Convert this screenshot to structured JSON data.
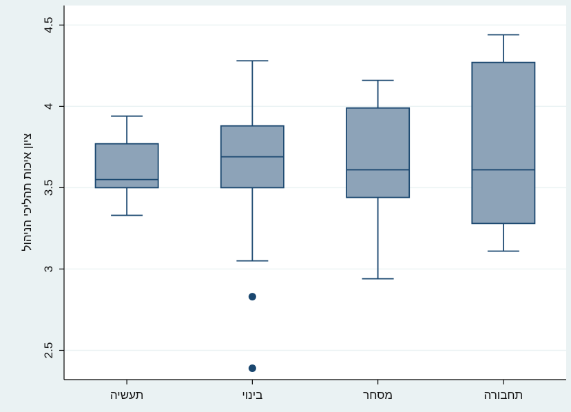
{
  "chart_data": {
    "type": "boxplot",
    "title": "",
    "xlabel": "",
    "ylabel": "ציון איכות תהליכי הניהול",
    "ylim": [
      2.32,
      4.62
    ],
    "yticks": [
      2.5,
      3,
      3.5,
      4,
      4.5
    ],
    "ytick_labels": [
      "2.5",
      "3",
      "3.5",
      "4",
      "4.5"
    ],
    "grid": true,
    "categories": [
      "תעשיה",
      "בינוי",
      "מסחר",
      "תחבורה"
    ],
    "boxes": [
      {
        "whisker_low": 3.33,
        "q1": 3.5,
        "median": 3.55,
        "q3": 3.77,
        "whisker_high": 3.94,
        "outliers": []
      },
      {
        "whisker_low": 3.05,
        "q1": 3.5,
        "median": 3.69,
        "q3": 3.88,
        "whisker_high": 4.28,
        "outliers": [
          2.83,
          2.39
        ]
      },
      {
        "whisker_low": 2.94,
        "q1": 3.44,
        "median": 3.61,
        "q3": 3.99,
        "whisker_high": 4.16,
        "outliers": []
      },
      {
        "whisker_low": 3.11,
        "q1": 3.28,
        "median": 3.61,
        "q3": 4.27,
        "whisker_high": 4.44,
        "outliers": []
      }
    ],
    "colors": {
      "box_fill": "#8da3b8",
      "box_stroke": "#1a476f",
      "whisker": "#1a476f",
      "outlier": "#1a476f",
      "grid": "#eaf2f3",
      "plot_bg": "#ffffff",
      "page_bg": "#eaf2f3",
      "axis": "#000000"
    }
  }
}
